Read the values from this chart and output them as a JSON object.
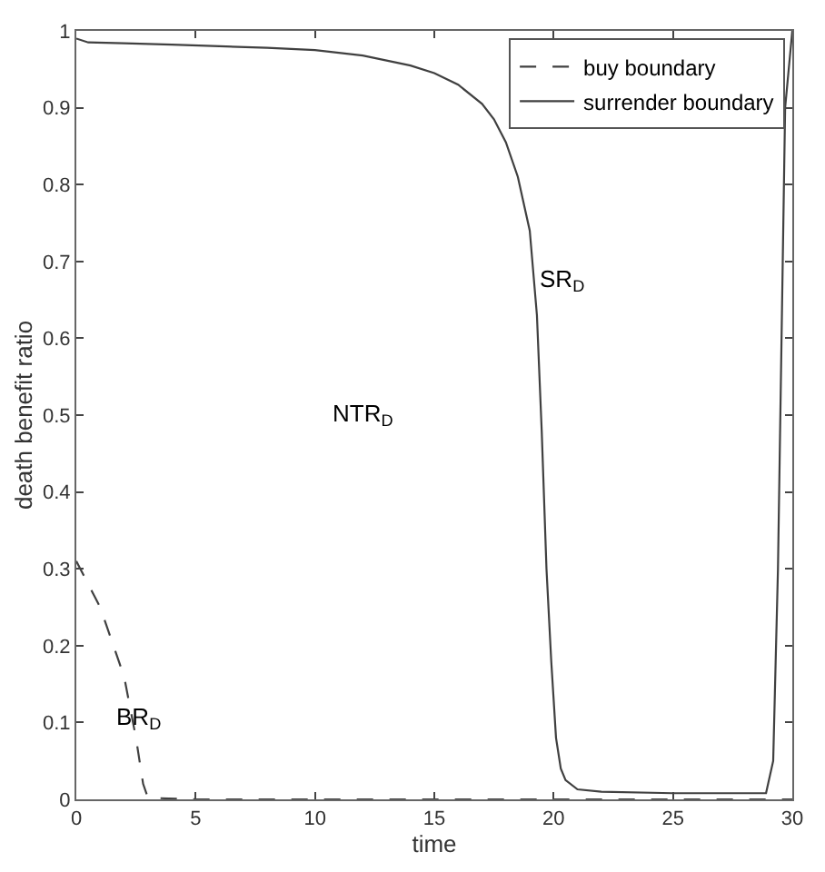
{
  "chart_data": {
    "type": "line",
    "xlabel": "time",
    "ylabel": "death benefit ratio",
    "series": [
      {
        "name": "buy boundary",
        "color": "#404040",
        "line_style": "dashed",
        "x": [
          0,
          1,
          2,
          2.5,
          2.8,
          3,
          5,
          10,
          15,
          20,
          25,
          30
        ],
        "values": [
          0.31,
          0.25,
          0.16,
          0.08,
          0.02,
          0.002,
          0,
          0,
          0,
          0,
          0,
          0
        ]
      },
      {
        "name": "surrender boundary",
        "color": "#404040",
        "line_style": "solid",
        "x": [
          0,
          0.5,
          2,
          4,
          6,
          8,
          10,
          12,
          14,
          15,
          16,
          17,
          17.5,
          18,
          18.5,
          19,
          19.3,
          19.5,
          19.7,
          19.9,
          20.1,
          20.3,
          20.5,
          21,
          22,
          25,
          28.9,
          29.2,
          29.4,
          29.5,
          29.7,
          30
        ],
        "values": [
          0.99,
          0.985,
          0.984,
          0.982,
          0.98,
          0.978,
          0.975,
          0.968,
          0.955,
          0.945,
          0.93,
          0.905,
          0.885,
          0.855,
          0.81,
          0.74,
          0.63,
          0.48,
          0.3,
          0.18,
          0.08,
          0.04,
          0.025,
          0.013,
          0.01,
          0.008,
          0.008,
          0.05,
          0.3,
          0.5,
          0.9,
          1
        ]
      }
    ],
    "annotations": [
      "NTR$_{D}$",
      "SR$_{D}$",
      "BR$_{D}$"
    ],
    "xlim": [
      0,
      30
    ],
    "xticks": [
      0,
      5,
      10,
      15,
      20,
      25,
      30
    ],
    "ylim": [
      0,
      1
    ],
    "yticks": [
      0,
      0.1,
      0.2,
      0.3,
      0.4,
      0.5,
      0.6,
      0.7,
      0.8,
      0.9,
      1
    ],
    "grid": false,
    "legend": "top right",
    "marker": "none"
  }
}
